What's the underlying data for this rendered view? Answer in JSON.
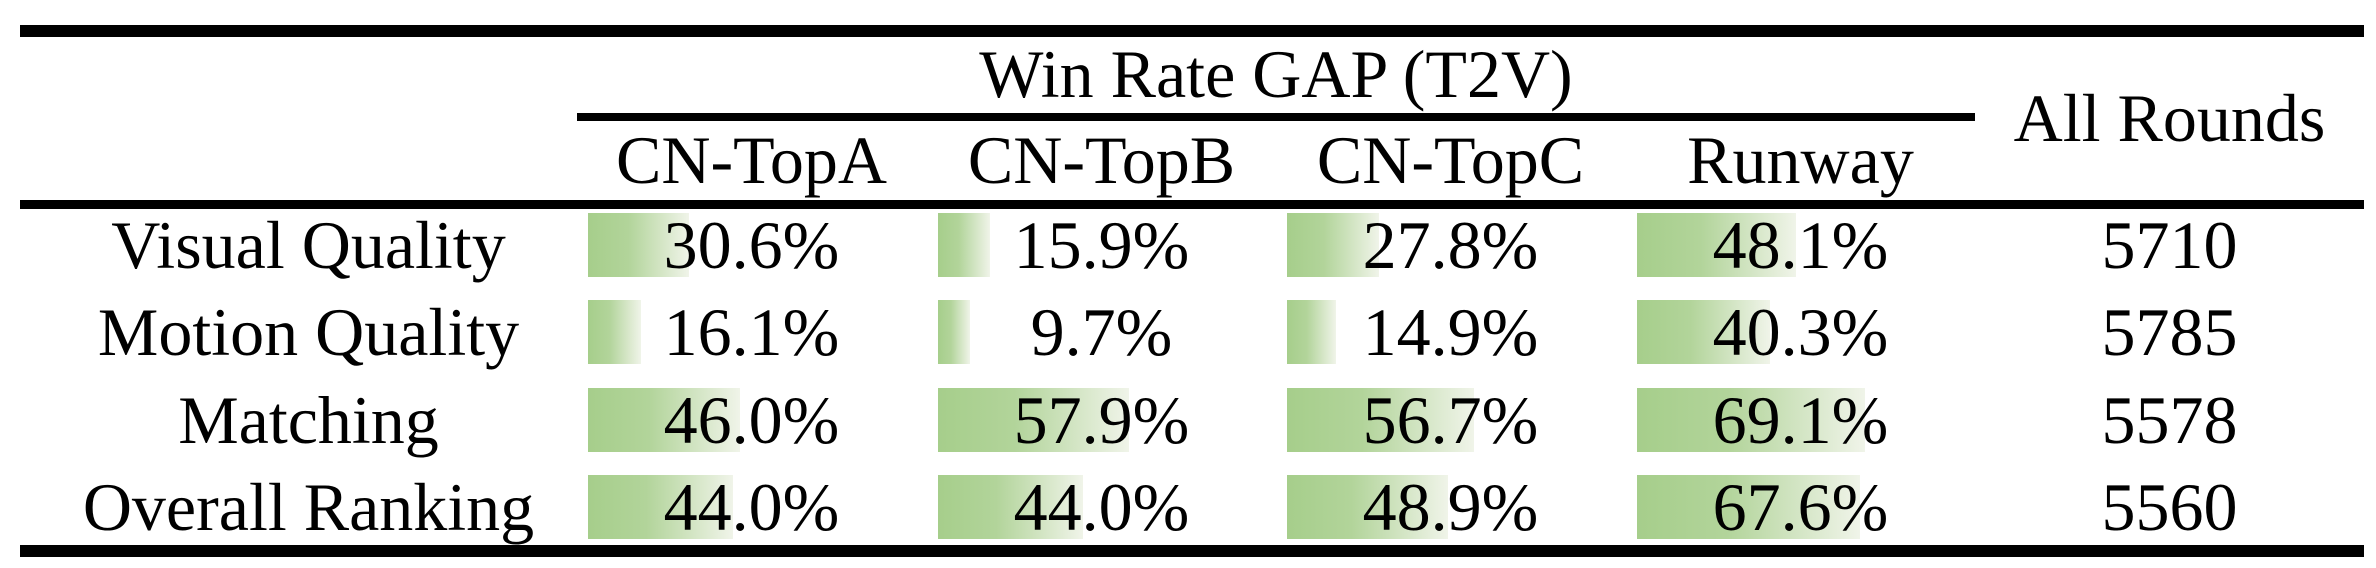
{
  "table": {
    "group_header": "Win Rate GAP (T2V)",
    "all_rounds_header": "All Rounds",
    "columns": [
      "CN-TopA",
      "CN-TopB",
      "CN-TopC",
      "Runway"
    ],
    "rows": [
      {
        "label": "Visual Quality",
        "values": [
          "30.6%",
          "15.9%",
          "27.8%",
          "48.1%"
        ],
        "pcts": [
          30.6,
          15.9,
          27.8,
          48.1
        ],
        "all_rounds": "5710"
      },
      {
        "label": "Motion Quality",
        "values": [
          "16.1%",
          "9.7%",
          "14.9%",
          "40.3%"
        ],
        "pcts": [
          16.1,
          9.7,
          14.9,
          40.3
        ],
        "all_rounds": "5785"
      },
      {
        "label": "Matching",
        "values": [
          "46.0%",
          "57.9%",
          "56.7%",
          "69.1%"
        ],
        "pcts": [
          46.0,
          57.9,
          56.7,
          69.1
        ],
        "all_rounds": "5578"
      },
      {
        "label": "Overall Ranking",
        "values": [
          "44.0%",
          "44.0%",
          "48.9%",
          "67.6%"
        ],
        "pcts": [
          44.0,
          44.0,
          48.9,
          67.6
        ],
        "all_rounds": "5560"
      }
    ],
    "bar_colors": {
      "start": "#a6ce8b",
      "mid": "#b2d49a",
      "end": "#f0f4e9"
    },
    "text_color": "#000000",
    "rule_color": "#000000"
  },
  "chart_data": {
    "type": "table",
    "title": "Win Rate GAP (T2V)",
    "columns": [
      "CN-TopA",
      "CN-TopB",
      "CN-TopC",
      "Runway",
      "All Rounds"
    ],
    "row_labels": [
      "Visual Quality",
      "Motion Quality",
      "Matching",
      "Overall Ranking"
    ],
    "win_rate_gap_percent": {
      "Visual Quality": [
        30.6,
        15.9,
        27.8,
        48.1
      ],
      "Motion Quality": [
        16.1,
        9.7,
        14.9,
        40.3
      ],
      "Matching": [
        46.0,
        57.9,
        56.7,
        69.1
      ],
      "Overall Ranking": [
        44.0,
        44.0,
        48.9,
        67.6
      ]
    },
    "all_rounds": [
      5710,
      5785,
      5578,
      5560
    ],
    "notes": "Each percentage cell contains a green gradient data bar whose width is proportional to the percentage value"
  }
}
